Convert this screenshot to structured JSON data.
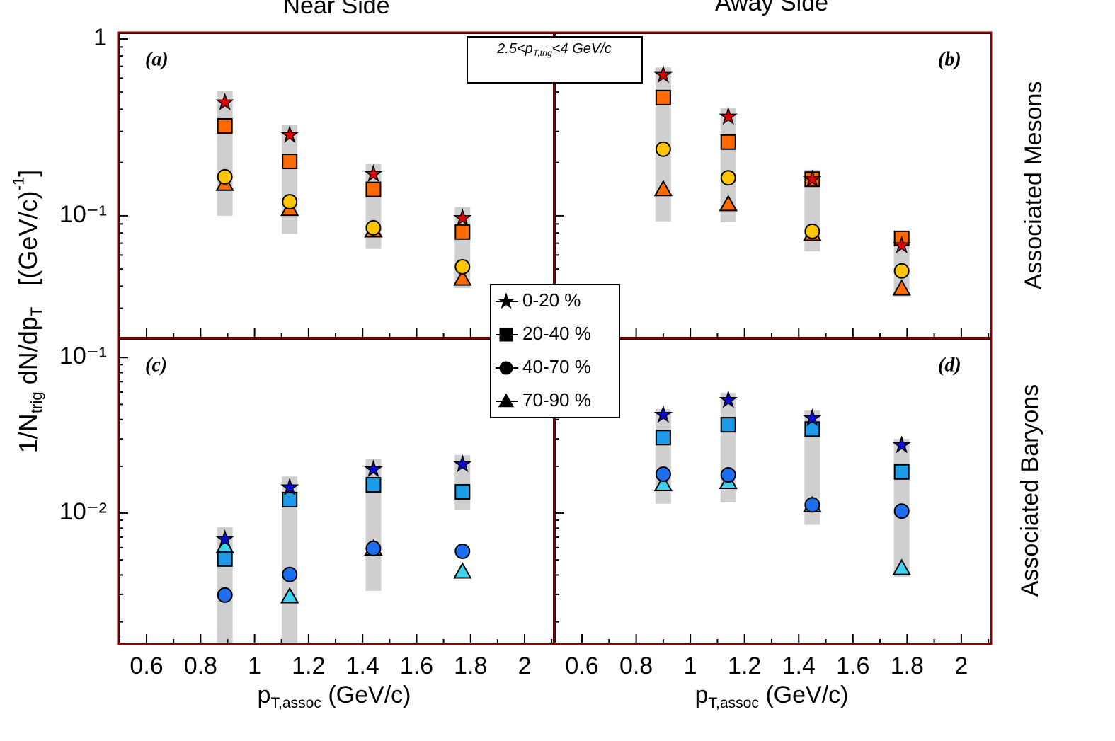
{
  "column_titles": [
    "Near Side",
    "Away Side"
  ],
  "row_titles": [
    "Associated Mesons",
    "Associated Baryons"
  ],
  "y_label": {
    "segments": [
      {
        "text": "1/N"
      },
      {
        "text": "trig",
        "shift": "sub"
      },
      {
        "text": " dN/dp"
      },
      {
        "text": "T",
        "shift": "sub"
      },
      {
        "text": "   [(GeV/c)"
      },
      {
        "text": "-1",
        "shift": "sup"
      },
      {
        "text": "]"
      }
    ]
  },
  "x_label": {
    "segments": [
      {
        "text": "p"
      },
      {
        "text": "T,assoc",
        "shift": "sub"
      },
      {
        "text": " (GeV/c)"
      }
    ]
  },
  "annotation": {
    "segments": [
      {
        "text": "2.5<p"
      },
      {
        "text": "T,trig",
        "shift": "sub"
      },
      {
        "text": "<4 GeV/c"
      }
    ]
  },
  "legend": {
    "entries": [
      {
        "name": "0-20 %",
        "marker": "star"
      },
      {
        "name": "20-40 %",
        "marker": "square"
      },
      {
        "name": "40-70 %",
        "marker": "circle"
      },
      {
        "name": "70-90 %",
        "marker": "triangle"
      }
    ]
  },
  "chart_data": [
    {
      "type": "scatter",
      "label": "(a)",
      "ylog": true,
      "xlim": [
        0.495,
        2.11
      ],
      "ylim": [
        0.0203,
        1.086
      ],
      "xticks": [
        0.6,
        0.8,
        1,
        1.2,
        1.4,
        1.6,
        1.8,
        2
      ],
      "xminorticks": [
        0.5,
        0.7,
        0.9,
        1.1,
        1.3,
        1.5,
        1.7,
        1.9,
        2.1
      ],
      "yticks": [
        1,
        {
          "value": 0.1,
          "label": "10⁻¹"
        }
      ],
      "yminorticks": [
        0.03,
        0.04,
        0.05,
        0.06,
        0.07,
        0.08,
        0.09,
        0.2,
        0.3,
        0.4,
        0.5,
        0.6,
        0.7,
        0.8,
        0.9
      ],
      "show_xtick_labels": false,
      "show_ytick_labels": true,
      "x": [
        0.89,
        1.13,
        1.44,
        1.77
      ],
      "bands": [
        [
          0.51,
          0.1
        ],
        [
          0.328,
          0.079
        ],
        [
          0.196,
          0.065
        ],
        [
          0.112,
          0.039
        ]
      ],
      "series": [
        {
          "marker": "star",
          "color": "#e00000",
          "values": [
            0.437,
            0.286,
            0.172,
            0.097
          ]
        },
        {
          "marker": "square",
          "color": "#ff6a00",
          "values": [
            0.322,
            0.203,
            0.141,
            0.081
          ]
        },
        {
          "marker": "circle",
          "color": "#ffc400",
          "values": [
            0.166,
            0.12,
            0.0855,
            0.0515
          ]
        },
        {
          "marker": "triangle",
          "color": "#ff6a00",
          "values": [
            0.151,
            0.109,
            0.0824,
            0.044
          ]
        }
      ]
    },
    {
      "type": "scatter",
      "label": "(b)",
      "ylog": true,
      "xlim": [
        0.498,
        2.11
      ],
      "ylim": [
        0.0203,
        1.086
      ],
      "xticks": [
        0.6,
        0.8,
        1,
        1.2,
        1.4,
        1.6,
        1.8,
        2
      ],
      "xminorticks": [
        0.5,
        0.7,
        0.9,
        1.1,
        1.3,
        1.5,
        1.7,
        1.9,
        2.1
      ],
      "yticks": [
        1,
        0.1
      ],
      "yminorticks": [
        0.03,
        0.04,
        0.05,
        0.06,
        0.07,
        0.08,
        0.09,
        0.2,
        0.3,
        0.4,
        0.5,
        0.6,
        0.7,
        0.8,
        0.9
      ],
      "show_xtick_labels": false,
      "show_ytick_labels": false,
      "x": [
        0.9,
        1.14,
        1.45,
        1.78
      ],
      "bands": [
        [
          0.69,
          0.093
        ],
        [
          0.406,
          0.092
        ],
        [
          0.182,
          0.063
        ],
        [
          0.082,
          0.035
        ]
      ],
      "series": [
        {
          "marker": "star",
          "color": "#e00000",
          "values": [
            0.625,
            0.363,
            0.161,
            0.068
          ]
        },
        {
          "marker": "square",
          "color": "#ff6a00",
          "values": [
            0.466,
            0.261,
            0.161,
            0.0745
          ]
        },
        {
          "marker": "circle",
          "color": "#ffc400",
          "values": [
            0.238,
            0.164,
            0.0817,
            0.0488
          ]
        },
        {
          "marker": "triangle",
          "color": "#ff6a00",
          "values": [
            0.141,
            0.116,
            0.0787,
            0.0387
          ]
        }
      ]
    },
    {
      "type": "scatter",
      "label": "(c)",
      "ylog": true,
      "xlim": [
        0.495,
        2.11
      ],
      "ylim": [
        0.00144,
        0.133
      ],
      "xticks": [
        0.6,
        0.8,
        1,
        1.2,
        1.4,
        1.6,
        1.8,
        2
      ],
      "xminorticks": [
        0.5,
        0.7,
        0.9,
        1.1,
        1.3,
        1.5,
        1.7,
        1.9,
        2.1
      ],
      "yticks": [
        {
          "value": 0.1,
          "label": "10⁻¹"
        },
        {
          "value": 0.01,
          "label": "10⁻²"
        }
      ],
      "yminorticks": [
        0.002,
        0.003,
        0.004,
        0.005,
        0.006,
        0.007,
        0.008,
        0.009,
        0.02,
        0.03,
        0.04,
        0.05,
        0.06,
        0.07,
        0.08,
        0.09
      ],
      "show_xtick_labels": true,
      "show_ytick_labels": true,
      "x": [
        0.89,
        1.13,
        1.44,
        1.77
      ],
      "bands": [
        [
          0.0081,
          0.00144
        ],
        [
          0.0172,
          0.00144
        ],
        [
          0.0224,
          0.00316
        ],
        [
          0.0236,
          0.01055
        ]
      ],
      "series": [
        {
          "marker": "star",
          "color": "#0a0ad0",
          "values": [
            0.00679,
            0.0146,
            0.0191,
            0.0206
          ]
        },
        {
          "marker": "square",
          "color": "#1e9be8",
          "values": [
            0.00507,
            0.0122,
            0.0152,
            0.0137
          ]
        },
        {
          "marker": "circle",
          "color": "#1e6ef0",
          "values": [
            0.00297,
            0.00403,
            0.00593,
            0.00568
          ]
        },
        {
          "marker": "triangle",
          "color": "#3cd2f0",
          "values": [
            0.0061,
            0.00291,
            0.0059,
            0.0042
          ]
        }
      ]
    },
    {
      "type": "scatter",
      "label": "(d)",
      "ylog": true,
      "xlim": [
        0.498,
        2.11
      ],
      "ylim": [
        0.00144,
        0.133
      ],
      "xticks": [
        0.6,
        0.8,
        1,
        1.2,
        1.4,
        1.6,
        1.8,
        2
      ],
      "xminorticks": [
        0.5,
        0.7,
        0.9,
        1.1,
        1.3,
        1.5,
        1.7,
        1.9,
        2.1
      ],
      "yticks": [
        0.1,
        0.01
      ],
      "yminorticks": [
        0.002,
        0.003,
        0.004,
        0.005,
        0.006,
        0.007,
        0.008,
        0.009,
        0.02,
        0.03,
        0.04,
        0.05,
        0.06,
        0.07,
        0.08,
        0.09
      ],
      "show_xtick_labels": true,
      "show_ytick_labels": false,
      "x": [
        0.9,
        1.14,
        1.45,
        1.78
      ],
      "bands": [
        [
          0.0466,
          0.0115
        ],
        [
          0.0593,
          0.0117
        ],
        [
          0.0457,
          0.0084
        ],
        [
          0.03,
          0.0039
        ]
      ],
      "series": [
        {
          "marker": "star",
          "color": "#0a0ad0",
          "values": [
            0.0428,
            0.0533,
            0.0407,
            0.0273
          ]
        },
        {
          "marker": "square",
          "color": "#1e9be8",
          "values": [
            0.0306,
            0.037,
            0.0347,
            0.0184
          ]
        },
        {
          "marker": "circle",
          "color": "#1e6ef0",
          "values": [
            0.0178,
            0.0176,
            0.0113,
            0.0103
          ]
        },
        {
          "marker": "triangle",
          "color": "#3cd2f0",
          "values": [
            0.0153,
            0.0158,
            0.0112,
            0.00442
          ]
        }
      ]
    }
  ]
}
